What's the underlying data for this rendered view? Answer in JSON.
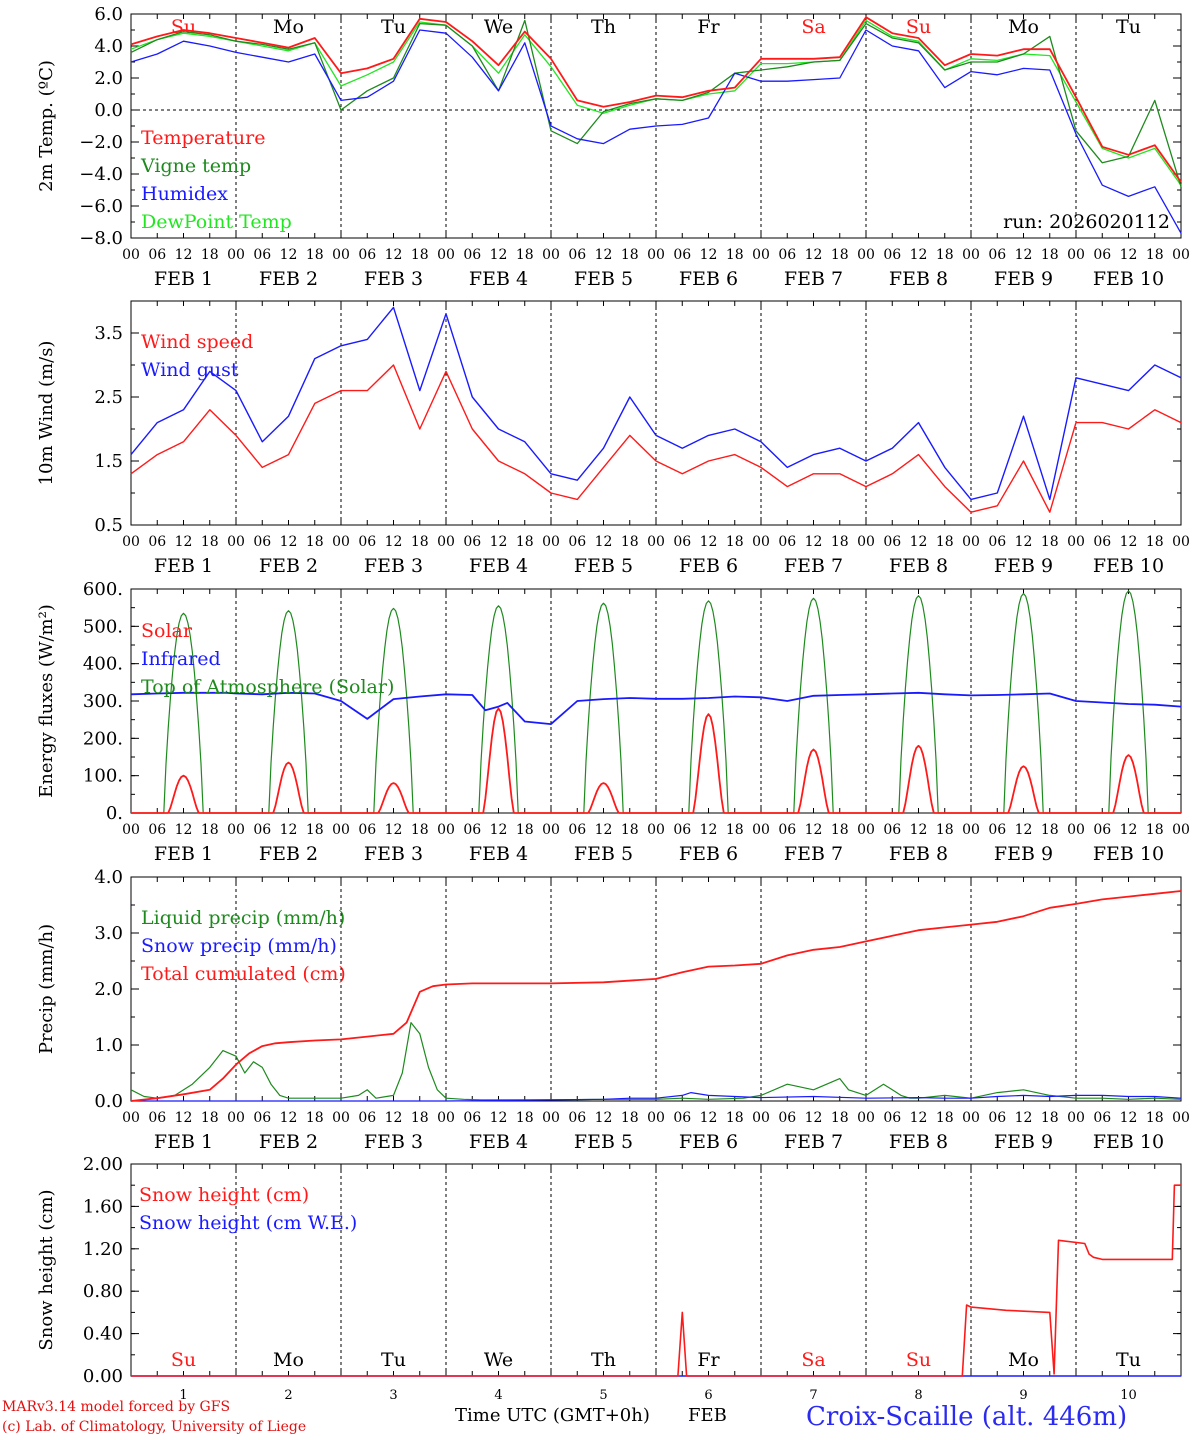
{
  "colors": {
    "red": "#ff1a1a",
    "green": "#1e8a1e",
    "blue": "#1a1aff",
    "lightgreen": "#22e622",
    "axis": "#000000",
    "station": "#2a2af0"
  },
  "day_letters": [
    "Su",
    "Mo",
    "Tu",
    "We",
    "Th",
    "Fr",
    "Sa",
    "Su",
    "Mo",
    "Tu"
  ],
  "day_letter_colors": [
    "red",
    "black",
    "black",
    "black",
    "black",
    "black",
    "red",
    "red",
    "black",
    "black"
  ],
  "hour_ticks": [
    "00",
    "06",
    "12",
    "18"
  ],
  "date_labels": [
    "FEB  1",
    "FEB  2",
    "FEB  3",
    "FEB  4",
    "FEB  5",
    "FEB  6",
    "FEB  7",
    "FEB  8",
    "FEB  9",
    "FEB 10"
  ],
  "day_numbers": [
    "1",
    "2",
    "3",
    "4",
    "5",
    "6",
    "7",
    "8",
    "9",
    "10"
  ],
  "run_label": "run: 2026020112",
  "footer": {
    "model": "MARv3.14 model forced by GFS",
    "copyright": "(c) Lab. of Climatology, University of Liege",
    "time_label": "Time UTC (GMT+0h)",
    "month": "FEB",
    "station": "Croix-Scaille (alt. 446m)"
  },
  "chart_data": [
    {
      "type": "line",
      "id": "temp",
      "ylabel": "2m Temp. (ºC)",
      "ylim": [
        -8,
        6
      ],
      "yticks": [
        "6.0",
        "4.0",
        "2.0",
        "0.0",
        "−2.0",
        "−4.0",
        "−6.0",
        "−8.0"
      ],
      "ytick_values": [
        6,
        4,
        2,
        0,
        -2,
        -4,
        -6,
        -8
      ],
      "zero_line": 0,
      "x_hours": [
        0,
        6,
        12,
        18,
        24,
        30,
        36,
        42,
        48,
        54,
        60,
        66,
        72,
        78,
        84,
        90,
        96,
        102,
        108,
        114,
        120,
        126,
        132,
        138,
        144,
        150,
        156,
        162,
        168,
        174,
        180,
        186,
        192,
        198,
        204,
        210,
        216,
        222,
        228,
        234,
        240
      ],
      "series": [
        {
          "name": "Temperature",
          "color": "red",
          "values": [
            4.1,
            4.6,
            5.0,
            4.8,
            4.5,
            4.2,
            3.9,
            4.5,
            2.3,
            2.6,
            3.2,
            5.7,
            5.5,
            4.3,
            2.8,
            4.9,
            3.2,
            0.6,
            0.2,
            0.5,
            0.9,
            0.8,
            1.2,
            1.4,
            3.2,
            3.2,
            3.2,
            3.3,
            5.8,
            4.8,
            4.5,
            2.8,
            3.5,
            3.4,
            3.8,
            3.8,
            0.8,
            -2.3,
            -2.8,
            -2.2,
            -4.5
          ]
        },
        {
          "name": "Vigne temp",
          "color": "green",
          "values": [
            3.6,
            4.4,
            4.9,
            4.7,
            4.3,
            4.1,
            3.8,
            4.2,
            0.0,
            1.2,
            2.0,
            5.4,
            5.3,
            4.0,
            1.2,
            5.6,
            -1.3,
            -2.1,
            -0.1,
            0.4,
            0.7,
            0.6,
            1.1,
            2.3,
            2.5,
            2.7,
            3.0,
            3.1,
            5.4,
            4.5,
            4.2,
            2.5,
            3.0,
            3.0,
            3.5,
            4.6,
            -1.3,
            -3.3,
            -2.9,
            0.6,
            -4.8
          ]
        },
        {
          "name": "Humidex",
          "color": "blue",
          "values": [
            3.0,
            3.5,
            4.3,
            4.0,
            3.6,
            3.3,
            3.0,
            3.5,
            0.6,
            0.8,
            1.8,
            5.0,
            4.8,
            3.3,
            1.2,
            4.2,
            -1.0,
            -1.8,
            -2.1,
            -1.2,
            -1.0,
            -0.9,
            -0.5,
            2.3,
            1.8,
            1.8,
            1.9,
            2.0,
            5.0,
            4.0,
            3.7,
            1.4,
            2.4,
            2.2,
            2.6,
            2.5,
            -1.5,
            -4.7,
            -5.4,
            -4.8,
            -7.7
          ]
        },
        {
          "name": "DewPoint Temp",
          "color": "lightgreen",
          "values": [
            3.8,
            4.4,
            4.8,
            4.6,
            4.3,
            4.0,
            3.7,
            4.2,
            1.5,
            2.2,
            3.0,
            5.5,
            5.3,
            4.0,
            2.3,
            4.7,
            2.7,
            0.3,
            -0.2,
            0.3,
            0.7,
            0.6,
            1.0,
            1.2,
            2.9,
            2.9,
            3.0,
            3.1,
            5.6,
            4.6,
            4.3,
            2.5,
            3.2,
            3.1,
            3.5,
            3.4,
            0.5,
            -2.4,
            -3.0,
            -2.4,
            -4.7
          ]
        }
      ]
    },
    {
      "type": "line",
      "id": "wind",
      "ylabel": "10m Wind (m/s)",
      "ylim": [
        0.5,
        4.0
      ],
      "yticks": [
        "3.5",
        "2.5",
        "1.5",
        "0.5"
      ],
      "ytick_values": [
        3.5,
        2.5,
        1.5,
        0.5
      ],
      "x_hours": [
        0,
        6,
        12,
        18,
        24,
        30,
        36,
        42,
        48,
        54,
        60,
        66,
        72,
        78,
        84,
        90,
        96,
        102,
        108,
        114,
        120,
        126,
        132,
        138,
        144,
        150,
        156,
        162,
        168,
        174,
        180,
        186,
        192,
        198,
        204,
        210,
        216,
        222,
        228,
        234,
        240
      ],
      "series": [
        {
          "name": "Wind speed",
          "color": "red",
          "values": [
            1.3,
            1.6,
            1.8,
            2.3,
            1.9,
            1.4,
            1.6,
            2.4,
            2.6,
            2.6,
            3.0,
            2.0,
            2.9,
            2.0,
            1.5,
            1.3,
            1.0,
            0.9,
            1.4,
            1.9,
            1.5,
            1.3,
            1.5,
            1.6,
            1.4,
            1.1,
            1.3,
            1.3,
            1.1,
            1.3,
            1.6,
            1.1,
            0.7,
            0.8,
            1.5,
            0.7,
            2.1,
            2.1,
            2.0,
            2.3,
            2.1
          ]
        },
        {
          "name": "Wind gust",
          "color": "blue",
          "values": [
            1.6,
            2.1,
            2.3,
            2.9,
            2.6,
            1.8,
            2.2,
            3.1,
            3.3,
            3.4,
            3.9,
            2.6,
            3.8,
            2.5,
            2.0,
            1.8,
            1.3,
            1.2,
            1.7,
            2.5,
            1.9,
            1.7,
            1.9,
            2.0,
            1.8,
            1.4,
            1.6,
            1.7,
            1.5,
            1.7,
            2.1,
            1.4,
            0.9,
            1.0,
            2.2,
            0.9,
            2.8,
            2.7,
            2.6,
            3.0,
            2.8
          ]
        }
      ]
    },
    {
      "type": "line",
      "id": "energy",
      "ylabel": "Energy fluxes (W/m²)",
      "ylim": [
        0,
        600
      ],
      "yticks": [
        "600.",
        "500.",
        "400.",
        "300.",
        "200.",
        "100.",
        "0."
      ],
      "ytick_values": [
        600,
        500,
        400,
        300,
        200,
        100,
        0
      ],
      "daily_peaks": {
        "toa_solar": [
          535,
          542,
          548,
          555,
          562,
          568,
          575,
          582,
          588,
          595
        ],
        "solar": [
          100,
          135,
          80,
          280,
          80,
          265,
          170,
          180,
          125,
          155
        ]
      },
      "toa_window_hours": [
        7.5,
        16.5
      ],
      "solar_window_hours": [
        8.5,
        15.5
      ],
      "infrared": {
        "x_hours": [
          0,
          6,
          12,
          18,
          22,
          24,
          30,
          36,
          42,
          48,
          54,
          60,
          66,
          72,
          78,
          81,
          84,
          86,
          90,
          96,
          102,
          108,
          114,
          120,
          126,
          132,
          138,
          144,
          150,
          156,
          162,
          168,
          174,
          180,
          186,
          192,
          198,
          204,
          210,
          216,
          222,
          228,
          234,
          240
        ],
        "values": [
          318,
          320,
          322,
          322,
          322,
          320,
          318,
          322,
          320,
          300,
          252,
          305,
          312,
          318,
          316,
          275,
          285,
          295,
          245,
          238,
          300,
          305,
          308,
          306,
          306,
          308,
          312,
          310,
          300,
          314,
          316,
          318,
          320,
          322,
          318,
          315,
          316,
          318,
          320,
          300,
          296,
          292,
          290,
          285
        ]
      },
      "series_names": [
        "Solar",
        "Infrared",
        "Top of Atmosphere (Solar)"
      ]
    },
    {
      "type": "line",
      "id": "precip",
      "ylabel": "Precip (mm/h)",
      "ylim": [
        0,
        4.0
      ],
      "yticks": [
        "4.0",
        "3.0",
        "2.0",
        "1.0",
        "0.0"
      ],
      "ytick_values": [
        4,
        3,
        2,
        1,
        0
      ],
      "series": [
        {
          "name": "Liquid precip (mm/h)",
          "color": "green",
          "x_hours": [
            0,
            3,
            6,
            10,
            14,
            18,
            21,
            24,
            26,
            28,
            30,
            32,
            34,
            36,
            40,
            44,
            48,
            52,
            54,
            56,
            60,
            62,
            64,
            66,
            68,
            70,
            72,
            76,
            80,
            84,
            96,
            108,
            120,
            126,
            132,
            140,
            144,
            150,
            156,
            162,
            164,
            168,
            172,
            174,
            176,
            178,
            180,
            186,
            192,
            198,
            204,
            210,
            216,
            222,
            228,
            234,
            240
          ],
          "values": [
            0.2,
            0.08,
            0.05,
            0.1,
            0.3,
            0.6,
            0.9,
            0.8,
            0.5,
            0.7,
            0.6,
            0.3,
            0.1,
            0.05,
            0.05,
            0.05,
            0.05,
            0.1,
            0.2,
            0.05,
            0.1,
            0.5,
            1.4,
            1.2,
            0.6,
            0.2,
            0.05,
            0.03,
            0.02,
            0.02,
            0.02,
            0.03,
            0.03,
            0.05,
            0.03,
            0.05,
            0.1,
            0.3,
            0.2,
            0.4,
            0.2,
            0.1,
            0.3,
            0.2,
            0.1,
            0.05,
            0.05,
            0.1,
            0.05,
            0.15,
            0.2,
            0.1,
            0.05,
            0.05,
            0.03,
            0.05,
            0.03
          ]
        },
        {
          "name": "Snow precip (mm/h)",
          "color": "blue",
          "x_hours": [
            0,
            24,
            48,
            72,
            96,
            108,
            114,
            120,
            126,
            128,
            132,
            138,
            144,
            156,
            168,
            180,
            186,
            192,
            198,
            204,
            210,
            216,
            222,
            228,
            234,
            240
          ],
          "values": [
            0,
            0,
            0,
            0,
            0.02,
            0.03,
            0.05,
            0.05,
            0.1,
            0.15,
            0.1,
            0.08,
            0.06,
            0.08,
            0.05,
            0.06,
            0.05,
            0.05,
            0.08,
            0.1,
            0.08,
            0.1,
            0.1,
            0.08,
            0.08,
            0.05
          ]
        },
        {
          "name": "Total cumulated (cm)",
          "color": "red",
          "x_hours": [
            0,
            6,
            12,
            18,
            21,
            24,
            27,
            30,
            33,
            36,
            42,
            48,
            54,
            60,
            63,
            66,
            69,
            72,
            78,
            84,
            96,
            108,
            120,
            126,
            132,
            138,
            144,
            150,
            156,
            162,
            168,
            174,
            180,
            186,
            192,
            198,
            204,
            210,
            216,
            222,
            228,
            234,
            240
          ],
          "values": [
            0.0,
            0.05,
            0.12,
            0.2,
            0.4,
            0.65,
            0.85,
            0.98,
            1.03,
            1.05,
            1.08,
            1.1,
            1.15,
            1.2,
            1.4,
            1.95,
            2.05,
            2.08,
            2.1,
            2.1,
            2.1,
            2.12,
            2.18,
            2.3,
            2.4,
            2.42,
            2.45,
            2.6,
            2.7,
            2.75,
            2.85,
            2.95,
            3.05,
            3.1,
            3.15,
            3.2,
            3.3,
            3.45,
            3.52,
            3.6,
            3.65,
            3.7,
            3.75
          ]
        }
      ]
    },
    {
      "type": "line",
      "id": "snow",
      "ylabel": "Snow height (cm)",
      "ylim": [
        0,
        2.0
      ],
      "yticks": [
        "2.00",
        "1.60",
        "1.20",
        "0.80",
        "0.40",
        "0.00"
      ],
      "ytick_values": [
        2.0,
        1.6,
        1.2,
        0.8,
        0.4,
        0.0
      ],
      "series": [
        {
          "name": "Snow height (cm)",
          "color": "red",
          "x_hours": [
            0,
            125,
            126,
            127,
            128,
            190,
            191,
            192,
            200,
            210,
            211,
            212,
            218,
            219,
            220,
            222,
            226,
            232,
            236,
            238,
            238.5,
            240
          ],
          "values": [
            0,
            0,
            0.6,
            0,
            0,
            0,
            0.67,
            0.65,
            0.62,
            0.6,
            0.02,
            1.28,
            1.25,
            1.15,
            1.12,
            1.1,
            1.1,
            1.1,
            1.1,
            1.1,
            1.8,
            1.8
          ]
        },
        {
          "name": "Snow height (cm W.E.)",
          "color": "blue",
          "x_hours": [
            0,
            240
          ],
          "values": [
            0,
            0
          ]
        }
      ]
    }
  ]
}
